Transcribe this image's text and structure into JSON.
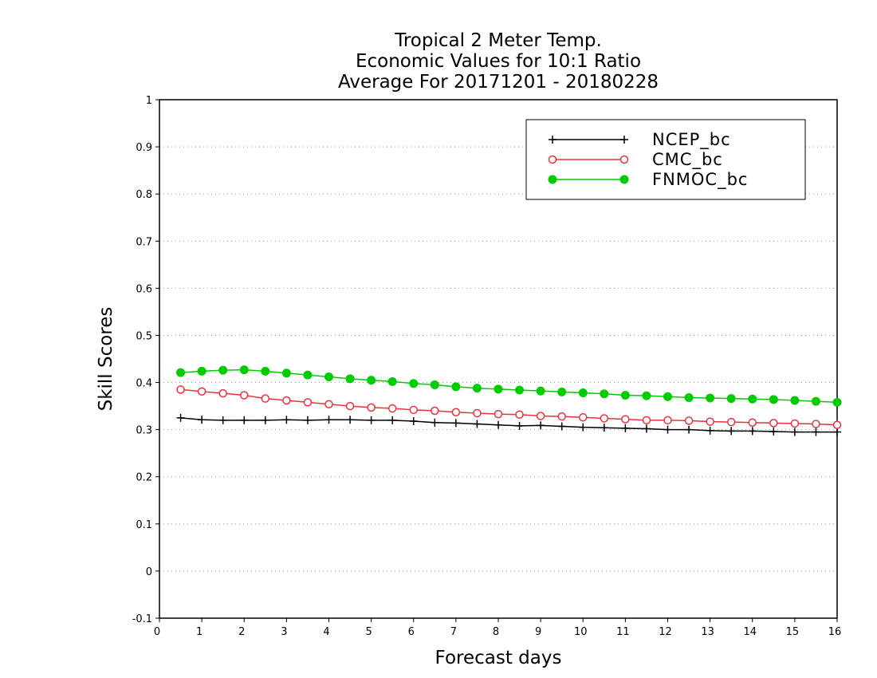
{
  "chart_data": {
    "type": "line",
    "title_lines": [
      "Tropical 2 Meter Temp.",
      "Economic Values for 10:1 Ratio",
      "Average For 20171201 - 20180228"
    ],
    "xlabel": "Forecast days",
    "ylabel": "Skill Scores",
    "xlim": [
      0,
      16
    ],
    "ylim": [
      -0.1,
      1
    ],
    "x_ticks": [
      0,
      1,
      2,
      3,
      4,
      5,
      6,
      7,
      8,
      9,
      10,
      11,
      12,
      13,
      14,
      15,
      16
    ],
    "x_tick_labels": [
      "0",
      "1",
      "2",
      "3",
      "4",
      "5",
      "6",
      "7",
      "8",
      "9",
      "10",
      "11",
      "12",
      "13",
      "14",
      "15",
      "16"
    ],
    "y_ticks": [
      -0.1,
      0,
      0.1,
      0.2,
      0.3,
      0.4,
      0.5,
      0.6,
      0.7,
      0.8,
      0.9,
      1
    ],
    "y_tick_labels": [
      "-0.1",
      "0",
      "0.1",
      "0.2",
      "0.3",
      "0.4",
      "0.5",
      "0.6",
      "0.7",
      "0.8",
      "0.9",
      "1"
    ],
    "grid": "horizontal dotted",
    "legend_position": "top-right",
    "x": [
      0.5,
      1,
      1.5,
      2,
      2.5,
      3,
      3.5,
      4,
      4.5,
      5,
      5.5,
      6,
      6.5,
      7,
      7.5,
      8,
      8.5,
      9,
      9.5,
      10,
      10.5,
      11,
      11.5,
      12,
      12.5,
      13,
      13.5,
      14,
      14.5,
      15,
      15.5,
      16
    ],
    "series": [
      {
        "name": "NCEP_bc",
        "color": "#000000",
        "marker": "plus",
        "values": [
          0.325,
          0.321,
          0.32,
          0.32,
          0.32,
          0.321,
          0.32,
          0.321,
          0.321,
          0.32,
          0.32,
          0.318,
          0.315,
          0.314,
          0.312,
          0.31,
          0.308,
          0.309,
          0.307,
          0.305,
          0.304,
          0.303,
          0.302,
          0.3,
          0.3,
          0.298,
          0.297,
          0.297,
          0.296,
          0.295,
          0.295,
          0.295
        ]
      },
      {
        "name": "CMC_bc",
        "color": "#e8333a",
        "marker": "open-circle",
        "values": [
          0.385,
          0.381,
          0.377,
          0.373,
          0.366,
          0.362,
          0.358,
          0.354,
          0.35,
          0.347,
          0.345,
          0.342,
          0.34,
          0.337,
          0.335,
          0.333,
          0.332,
          0.329,
          0.328,
          0.326,
          0.324,
          0.322,
          0.32,
          0.32,
          0.319,
          0.317,
          0.316,
          0.315,
          0.314,
          0.313,
          0.312,
          0.31
        ]
      },
      {
        "name": "FNMOC_bc",
        "color": "#00cc00",
        "marker": "filled-circle",
        "values": [
          0.421,
          0.424,
          0.426,
          0.427,
          0.424,
          0.42,
          0.416,
          0.412,
          0.408,
          0.405,
          0.402,
          0.398,
          0.395,
          0.391,
          0.388,
          0.386,
          0.384,
          0.382,
          0.38,
          0.378,
          0.376,
          0.373,
          0.372,
          0.37,
          0.368,
          0.367,
          0.366,
          0.365,
          0.364,
          0.362,
          0.36,
          0.358
        ]
      }
    ]
  }
}
